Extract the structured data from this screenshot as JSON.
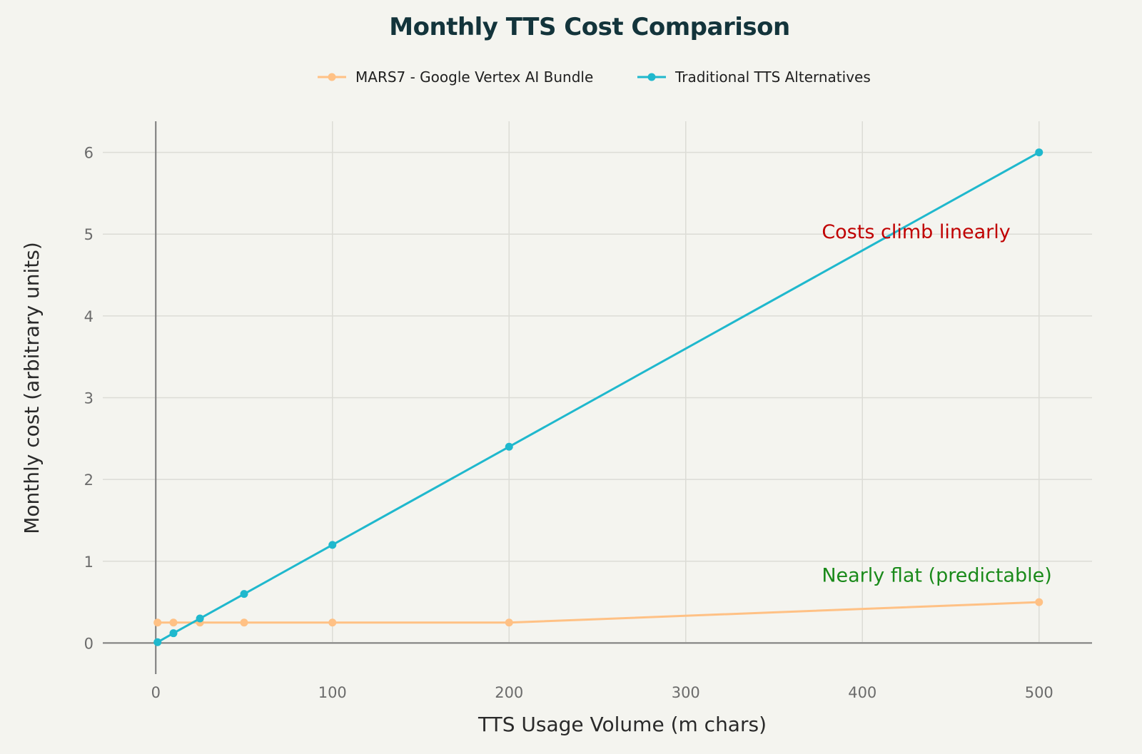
{
  "chart_data": {
    "type": "line",
    "title": "Monthly TTS Cost Comparison",
    "xlabel": "TTS Usage Volume (m chars)",
    "ylabel": "Monthly cost (arbitrary units)",
    "xlim": [
      -30,
      530
    ],
    "ylim": [
      -0.38,
      6.38
    ],
    "xticks": [
      0,
      100,
      200,
      300,
      400,
      500
    ],
    "yticks": [
      0,
      1,
      2,
      3,
      4,
      5,
      6
    ],
    "legend_position": "top-center",
    "grid": true,
    "series": [
      {
        "name": "MARS7 - Google Vertex AI Bundle",
        "color": "#ffc185",
        "x": [
          1,
          10,
          25,
          50,
          100,
          200,
          500
        ],
        "y": [
          0.25,
          0.25,
          0.25,
          0.25,
          0.25,
          0.25,
          0.5
        ]
      },
      {
        "name": "Traditional TTS Alternatives",
        "color": "#1fb8cd",
        "x": [
          1,
          10,
          25,
          50,
          100,
          200,
          500
        ],
        "y": [
          0.01,
          0.12,
          0.3,
          0.6,
          1.2,
          2.4,
          6.0
        ]
      }
    ],
    "annotations": [
      {
        "text": "Costs climb linearly",
        "x": 377,
        "y": 4.95,
        "color": "#c00000"
      },
      {
        "text": "Nearly flat (predictable)",
        "x": 377,
        "y": 0.75,
        "color": "#1a8a1a"
      }
    ]
  }
}
